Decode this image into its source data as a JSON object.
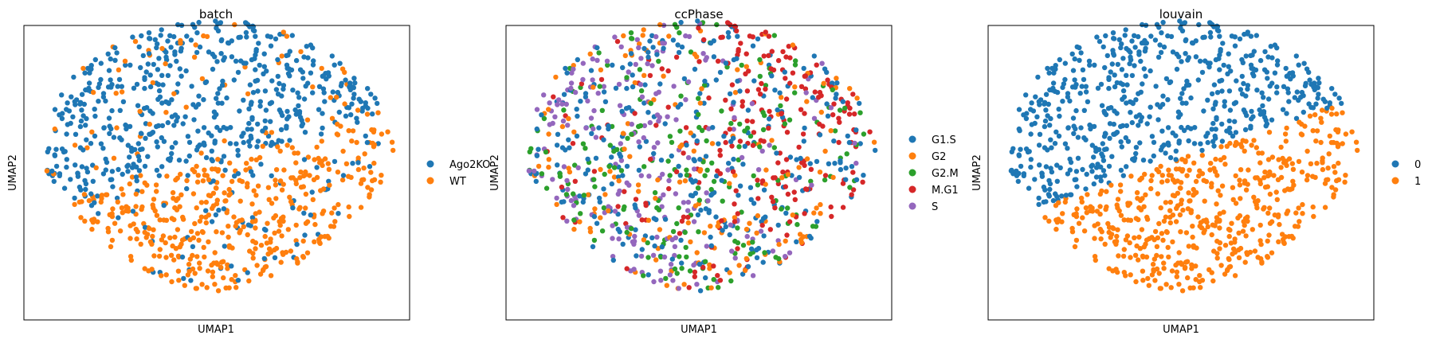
{
  "chart_data": [
    {
      "type": "scatter",
      "title": "batch",
      "xlabel": "UMAP1",
      "ylabel": "UMAP2",
      "legend_position": "right",
      "ticks": false,
      "series": [
        {
          "name": "Ago2KO",
          "color": "#1f77b4"
        },
        {
          "name": "WT",
          "color": "#ff7f0e"
        }
      ]
    },
    {
      "type": "scatter",
      "title": "ccPhase",
      "xlabel": "UMAP1",
      "ylabel": "UMAP2",
      "legend_position": "right",
      "ticks": false,
      "series": [
        {
          "name": "G1.S",
          "color": "#1f77b4"
        },
        {
          "name": "G2",
          "color": "#ff7f0e"
        },
        {
          "name": "G2.M",
          "color": "#2ca02c"
        },
        {
          "name": "M.G1",
          "color": "#d62728"
        },
        {
          "name": "S",
          "color": "#9467bd"
        }
      ]
    },
    {
      "type": "scatter",
      "title": "louvain",
      "xlabel": "UMAP1",
      "ylabel": "UMAP2",
      "legend_position": "right",
      "ticks": false,
      "series": [
        {
          "name": "0",
          "color": "#1f77b4"
        },
        {
          "name": "1",
          "color": "#ff7f0e"
        }
      ]
    }
  ]
}
